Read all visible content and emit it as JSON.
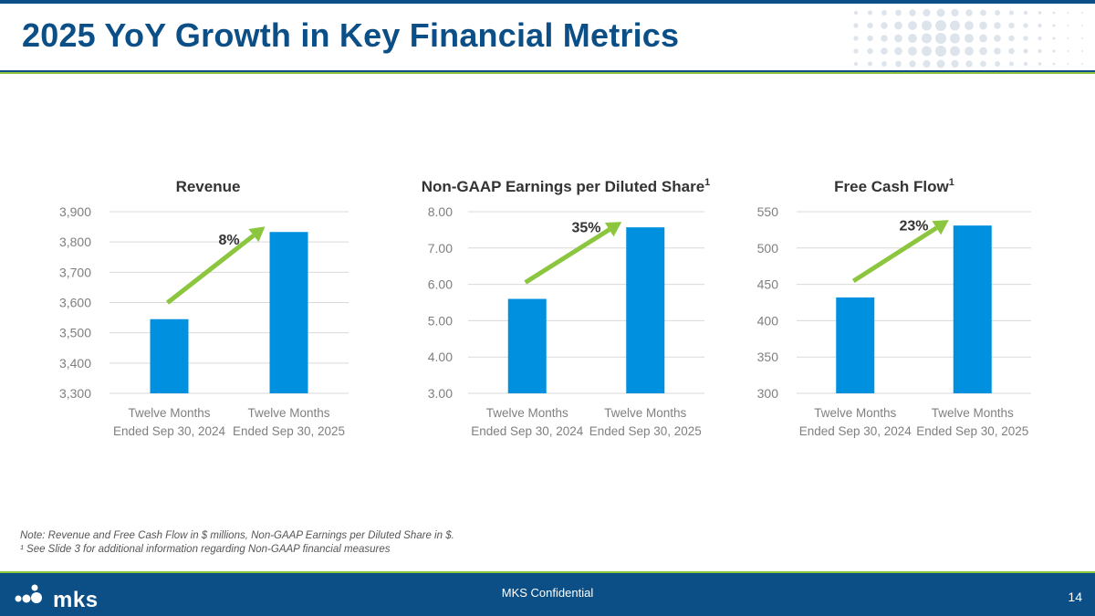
{
  "slide": {
    "title": "2025 YoY Growth in Key Financial Metrics",
    "note_line1": "Note: Revenue and Free Cash Flow in $ millions, Non-GAAP Earnings per Diluted Share in $.",
    "note_line2": "¹ See Slide 3 for additional information regarding Non-GAAP financial measures",
    "footer_center": "MKS Confidential",
    "page_number": "14",
    "logo_text": "mks"
  },
  "colors": {
    "brand_blue": "#0b4f86",
    "bar_blue": "#0090e0",
    "arrow_green": "#8cc63f",
    "gridline": "#d9d9d9"
  },
  "chart_data": [
    {
      "type": "bar",
      "title": "Revenue",
      "superscript": "",
      "categories": [
        [
          "Twelve Months",
          "Ended  Sep 30, 2024"
        ],
        [
          "Twelve Months",
          "Ended Sep 30, 2025"
        ]
      ],
      "values": [
        3545,
        3833
      ],
      "ylim": [
        3300,
        3900
      ],
      "yticks": [
        "3,300",
        "3,400",
        "3,500",
        "3,600",
        "3,700",
        "3,800",
        "3,900"
      ],
      "growth_label": "8%",
      "xlabel": "",
      "ylabel": ""
    },
    {
      "type": "bar",
      "title": "Non-GAAP Earnings per Diluted Share",
      "superscript": "1",
      "categories": [
        [
          "Twelve Months",
          "Ended  Sep 30, 2024"
        ],
        [
          "Twelve Months",
          "Ended Sep 30, 2025"
        ]
      ],
      "values": [
        5.6,
        7.57
      ],
      "ylim": [
        3,
        8
      ],
      "yticks": [
        "3.00",
        "4.00",
        "5.00",
        "6.00",
        "7.00",
        "8.00"
      ],
      "growth_label": "35%",
      "xlabel": "",
      "ylabel": ""
    },
    {
      "type": "bar",
      "title": "Free Cash Flow",
      "superscript": "1",
      "categories": [
        [
          "Twelve Months",
          "Ended  Sep 30, 2024"
        ],
        [
          "Twelve Months",
          "Ended Sep 30, 2025"
        ]
      ],
      "values": [
        432,
        531
      ],
      "ylim": [
        300,
        550
      ],
      "yticks": [
        "300",
        "350",
        "400",
        "450",
        "500",
        "550"
      ],
      "growth_label": "23%",
      "xlabel": "",
      "ylabel": ""
    }
  ]
}
